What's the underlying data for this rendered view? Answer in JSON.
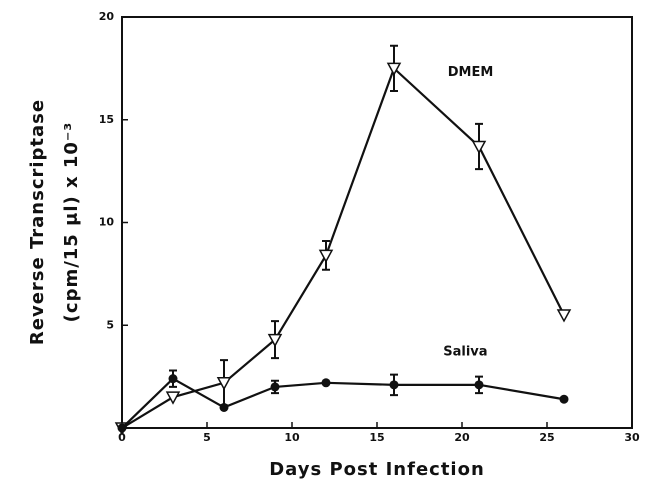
{
  "chart_data": {
    "type": "line",
    "xlabel": "Days Post Infection",
    "ylabel": [
      "Reverse Transcriptase",
      "(cpm/15 μl) x 10⁻³"
    ],
    "x": [
      0,
      3,
      6,
      9,
      12,
      16,
      21,
      26
    ],
    "series": [
      {
        "name": "DMEM",
        "color": "#111111",
        "marker": "triangle-down-open",
        "values": [
          0,
          1.5,
          2.2,
          4.3,
          8.4,
          17.5,
          13.7,
          5.5
        ],
        "errors": [
          null,
          null,
          1.1,
          0.9,
          0.7,
          1.1,
          1.1,
          null
        ]
      },
      {
        "name": "Saliva",
        "color": "#111111",
        "marker": "circle-filled",
        "values": [
          0,
          2.4,
          1.0,
          2.0,
          2.2,
          2.1,
          2.1,
          1.4
        ],
        "errors": [
          null,
          0.4,
          null,
          0.3,
          null,
          0.5,
          0.4,
          null
        ]
      }
    ],
    "xlim": [
      0,
      30
    ],
    "xticks": [
      0,
      5,
      10,
      15,
      20,
      25,
      30
    ],
    "ylim": [
      0,
      20
    ],
    "yticks": [
      5,
      10,
      15,
      20
    ],
    "grid": false
  }
}
